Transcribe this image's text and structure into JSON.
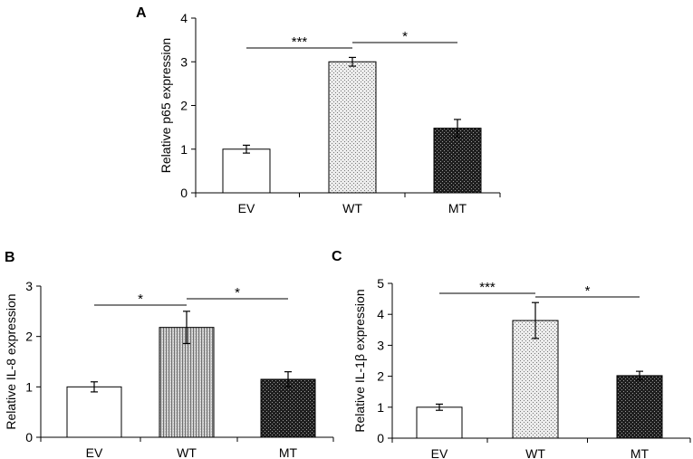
{
  "chart_data": [
    {
      "panel": "A",
      "type": "bar",
      "categories": [
        "EV",
        "WT",
        "MT"
      ],
      "values": [
        1.0,
        3.0,
        1.48
      ],
      "errors": [
        0.09,
        0.1,
        0.2
      ],
      "ylabel": "Relative p65 expression",
      "ylim": [
        0,
        4
      ],
      "yticks": [
        "0",
        "1",
        "2",
        "3",
        "4"
      ],
      "fills": [
        "white",
        "dots-light",
        "dots-dark"
      ],
      "significance": [
        {
          "from": 0,
          "to": 1,
          "label": "***"
        },
        {
          "from": 1,
          "to": 2,
          "label": "*"
        }
      ]
    },
    {
      "panel": "B",
      "type": "bar",
      "categories": [
        "EV",
        "WT",
        "MT"
      ],
      "values": [
        1.0,
        2.18,
        1.15
      ],
      "errors": [
        0.1,
        0.32,
        0.15
      ],
      "ylabel": "Relative IL-8 expression",
      "ylim": [
        0,
        3
      ],
      "yticks": [
        "0",
        "1",
        "2",
        "3"
      ],
      "fills": [
        "white",
        "vertical-lines",
        "dots-dark"
      ],
      "significance": [
        {
          "from": 0,
          "to": 1,
          "label": "*"
        },
        {
          "from": 1,
          "to": 2,
          "label": "*"
        }
      ]
    },
    {
      "panel": "C",
      "type": "bar",
      "categories": [
        "EV",
        "WT",
        "MT"
      ],
      "values": [
        1.0,
        3.8,
        2.02
      ],
      "errors": [
        0.1,
        0.58,
        0.14
      ],
      "ylabel": "Relative IL-1β expression",
      "ylim": [
        0,
        5
      ],
      "yticks": [
        "0",
        "1",
        "2",
        "3",
        "4",
        "5"
      ],
      "fills": [
        "white",
        "dots-light",
        "dots-dark"
      ],
      "significance": [
        {
          "from": 0,
          "to": 1,
          "label": "***"
        },
        {
          "from": 1,
          "to": 2,
          "label": "*"
        }
      ]
    }
  ]
}
